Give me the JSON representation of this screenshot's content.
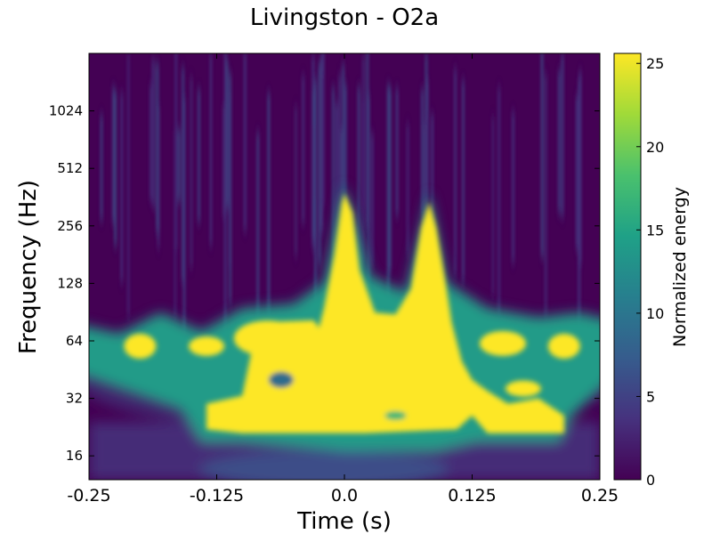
{
  "chart_data": {
    "type": "heatmap",
    "title": "Livingston - O2a",
    "xlabel": "Time (s)",
    "ylabel": "Frequency (Hz)",
    "colorbar_label": "Normalized energy",
    "colormap": "viridis",
    "colormap_stops": [
      "#440154",
      "#46327e",
      "#365c8d",
      "#277f8e",
      "#1fa187",
      "#4ac16d",
      "#a0da39",
      "#fde725"
    ],
    "xlim": [
      -0.25,
      0.25
    ],
    "ylim": [
      12,
      2048
    ],
    "yscale": "log2",
    "clim": [
      0,
      25.6
    ],
    "x_ticks": [
      -0.25,
      -0.125,
      0.0,
      0.125,
      0.25
    ],
    "x_tick_labels": [
      "-0.25",
      "-0.125",
      "0.0",
      "0.125",
      "0.25"
    ],
    "y_ticks": [
      16,
      32,
      64,
      128,
      256,
      512,
      1024
    ],
    "y_tick_labels": [
      "16",
      "32",
      "64",
      "128",
      "256",
      "512",
      "1024"
    ],
    "colorbar_ticks": [
      0,
      5,
      10,
      15,
      20,
      25
    ],
    "colorbar_tick_labels": [
      "0",
      "5",
      "10",
      "15",
      "20",
      "25"
    ],
    "grid": false,
    "features": [
      {
        "t": 0.0,
        "f_low": 24,
        "f_high": 400,
        "energy": 25
      },
      {
        "t": 0.083,
        "f_low": 24,
        "f_high": 350,
        "energy": 25
      },
      {
        "t": 0.04,
        "f_low": 22,
        "f_high": 100,
        "energy": 25
      },
      {
        "t": -0.07,
        "f_low": 22,
        "f_high": 80,
        "energy": 25
      },
      {
        "t": 0.18,
        "f_low": 22,
        "f_high": 32,
        "energy": 25
      },
      {
        "t": -0.2,
        "f_low": 50,
        "f_high": 75,
        "energy": 22
      },
      {
        "t": 0.2,
        "f_low": 50,
        "f_high": 75,
        "energy": 22
      }
    ]
  }
}
